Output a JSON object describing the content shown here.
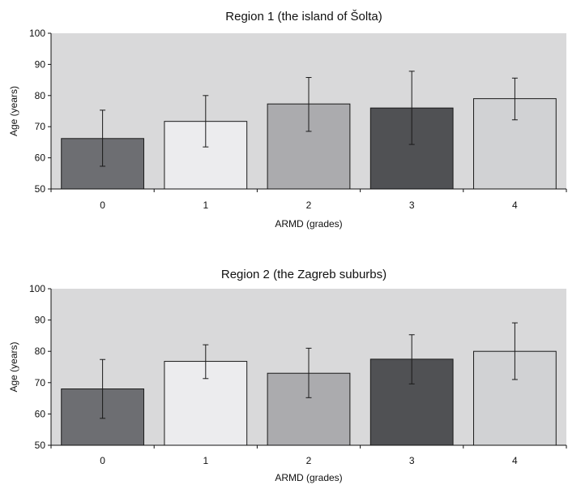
{
  "chart_data": [
    {
      "type": "bar",
      "title": "Region 1 (the island of Šolta)",
      "xlabel": "ARMD (grades)",
      "ylabel": "Age (years)",
      "ylim": [
        50,
        100
      ],
      "yticks": [
        50,
        60,
        70,
        80,
        90,
        100
      ],
      "categories": [
        "0",
        "1",
        "2",
        "3",
        "4"
      ],
      "values": [
        66.2,
        71.7,
        77.3,
        76.0,
        79.0
      ],
      "error_low": [
        57.3,
        63.5,
        68.5,
        64.3,
        72.2
      ],
      "error_high": [
        75.3,
        80.0,
        85.8,
        87.8,
        85.6
      ],
      "bar_colors": [
        "#6d6e72",
        "#ececee",
        "#ababae",
        "#505154",
        "#d1d2d4"
      ],
      "plot_background": "#d9d9da",
      "grid": false,
      "legend": "none"
    },
    {
      "type": "bar",
      "title": "Region 2 (the Zagreb suburbs)",
      "xlabel": "ARMD (grades)",
      "ylabel": "Age (years)",
      "ylim": [
        50,
        100
      ],
      "yticks": [
        50,
        60,
        70,
        80,
        90,
        100
      ],
      "categories": [
        "0",
        "1",
        "2",
        "3",
        "4"
      ],
      "values": [
        68.0,
        76.8,
        73.0,
        77.5,
        80.0
      ],
      "error_low": [
        58.6,
        71.3,
        65.2,
        69.6,
        71.0
      ],
      "error_high": [
        77.4,
        82.1,
        81.0,
        85.3,
        89.1
      ],
      "bar_colors": [
        "#6d6e72",
        "#ececee",
        "#ababae",
        "#505154",
        "#d1d2d4"
      ],
      "plot_background": "#d9d9da",
      "grid": false,
      "legend": "none"
    }
  ]
}
